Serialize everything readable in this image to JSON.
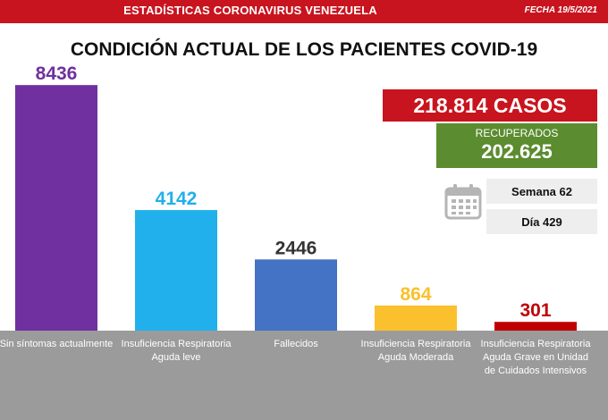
{
  "header": {
    "title": "ESTADÍSTICAS CORONAVIRUS VENEZUELA",
    "date": "FECHA 19/5/2021"
  },
  "subtitle": "CONDICIÓN ACTUAL DE LOS PACIENTES COVID-19",
  "summary": {
    "casos": "218.814 CASOS",
    "recuperados_label": "RECUPERADOS",
    "recuperados_value": "202.625",
    "semana": "Semana 62",
    "dia": "Día 429"
  },
  "icons": {
    "calendar": "calendar-icon"
  },
  "colors": {
    "header_red": "#c8141e",
    "recovered_green": "#5b8c2f",
    "label_band_gray": "#9b9b9b"
  },
  "chart_data": {
    "type": "bar",
    "categories": [
      "Sin síntomas actualmente",
      "Insuficiencia Respiratoria Aguda leve",
      "Fallecidos",
      "Insuficiencia Respiratoria Aguda Moderada",
      "Insuficiencia Respiratoria Aguda Grave en Unidad de Cuidados Intensivos"
    ],
    "values": [
      8436,
      4142,
      2446,
      864,
      301
    ],
    "bar_colors": [
      "#7030a0",
      "#21b0ec",
      "#4472c4",
      "#fbc02d",
      "#c00000"
    ],
    "label_colors": [
      "#7030a0",
      "#21b0ec",
      "#333333",
      "#fbc02d",
      "#c00000"
    ],
    "ylim": [
      0,
      9700
    ],
    "grid": false,
    "legend": "none"
  }
}
